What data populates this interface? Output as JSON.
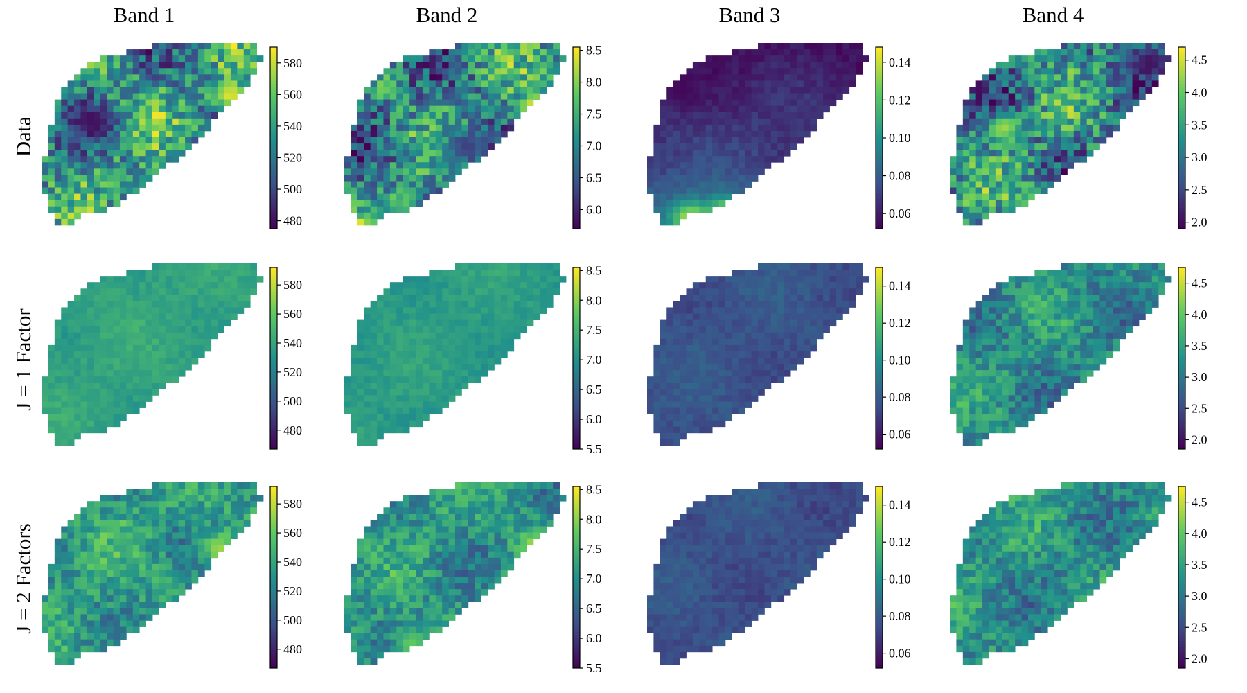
{
  "columns": [
    "Band 1",
    "Band 2",
    "Band 3",
    "Band 4"
  ],
  "rows": [
    "Data",
    "J = 1 Factor",
    "J = 2 Factors"
  ],
  "colormap": [
    "#440154",
    "#3b528b",
    "#21918c",
    "#5ec962",
    "#fde725"
  ],
  "chart_data": {
    "type": "heatmap",
    "title": "",
    "xlabel": "",
    "ylabel": "",
    "description_layout": "3 rows x 4 columns grid of spatial raster maps with viridis colour bars",
    "panels": [
      {
        "row": "Data",
        "band": "Band 1",
        "range": [
          475,
          590
        ],
        "ticks": [
          "480",
          "500",
          "520",
          "540",
          "560",
          "580"
        ],
        "tick_values": [
          480,
          500,
          520,
          540,
          560,
          580
        ],
        "variation": "high",
        "mean": 0.5,
        "hotspots": [
          [
            0.85,
            0.28,
            0.95
          ],
          [
            0.55,
            0.72,
            0.8
          ]
        ],
        "lowspots": [
          [
            0.22,
            0.42,
            0.05
          ]
        ]
      },
      {
        "row": "Data",
        "band": "Band 2",
        "range": [
          5.7,
          8.55
        ],
        "ticks": [
          "6.0",
          "6.5",
          "7.0",
          "7.5",
          "8.0",
          "8.5"
        ],
        "tick_values": [
          6.0,
          6.5,
          7.0,
          7.5,
          8.0,
          8.5
        ],
        "variation": "high",
        "mean": 0.46,
        "hotspots": [
          [
            0.87,
            0.33,
            0.95
          ],
          [
            0.3,
            0.85,
            0.95
          ]
        ],
        "lowspots": [
          [
            0.4,
            0.88,
            0.05
          ],
          [
            0.55,
            0.55,
            0.2
          ]
        ]
      },
      {
        "row": "Data",
        "band": "Band 3",
        "range": [
          0.052,
          0.148
        ],
        "ticks": [
          "0.06",
          "0.08",
          "0.10",
          "0.12",
          "0.14"
        ],
        "tick_values": [
          0.06,
          0.08,
          0.1,
          0.12,
          0.14
        ],
        "variation": "gradient",
        "mean": 0.2,
        "hotspots": [
          [
            0.2,
            0.93,
            0.95
          ],
          [
            0.35,
            0.9,
            0.85
          ]
        ],
        "lowspots": [
          [
            0.15,
            0.25,
            0.02
          ]
        ]
      },
      {
        "row": "Data",
        "band": "Band 4",
        "range": [
          1.9,
          4.7
        ],
        "ticks": [
          "2.0",
          "2.5",
          "3.0",
          "3.5",
          "4.0",
          "4.5"
        ],
        "tick_values": [
          2.0,
          2.5,
          3.0,
          3.5,
          4.0,
          4.5
        ],
        "variation": "high",
        "mean": 0.45,
        "hotspots": [
          [
            0.25,
            0.45,
            0.85
          ],
          [
            0.4,
            0.85,
            0.85
          ]
        ],
        "lowspots": [
          [
            0.9,
            0.1,
            0.05
          ]
        ]
      },
      {
        "row": "J = 1 Factor",
        "band": "Band 1",
        "range": [
          467,
          592
        ],
        "ticks": [
          "480",
          "500",
          "520",
          "540",
          "560",
          "580"
        ],
        "tick_values": [
          480,
          500,
          520,
          540,
          560,
          580
        ],
        "variation": "low",
        "mean": 0.58,
        "hotspots": [],
        "lowspots": []
      },
      {
        "row": "J = 1 Factor",
        "band": "Band 2",
        "range": [
          5.5,
          8.55
        ],
        "ticks": [
          "5.5",
          "6.0",
          "6.5",
          "7.0",
          "7.5",
          "8.0",
          "8.5"
        ],
        "tick_values": [
          5.5,
          6.0,
          6.5,
          7.0,
          7.5,
          8.0,
          8.5
        ],
        "variation": "low",
        "mean": 0.55,
        "hotspots": [],
        "lowspots": []
      },
      {
        "row": "J = 1 Factor",
        "band": "Band 3",
        "range": [
          0.052,
          0.15
        ],
        "ticks": [
          "0.06",
          "0.08",
          "0.10",
          "0.12",
          "0.14"
        ],
        "tick_values": [
          0.06,
          0.08,
          0.1,
          0.12,
          0.14
        ],
        "variation": "low",
        "mean": 0.26,
        "hotspots": [],
        "lowspots": []
      },
      {
        "row": "J = 1 Factor",
        "band": "Band 4",
        "range": [
          1.85,
          4.75
        ],
        "ticks": [
          "2.0",
          "2.5",
          "3.0",
          "3.5",
          "4.0",
          "4.5"
        ],
        "tick_values": [
          2.0,
          2.5,
          3.0,
          3.5,
          4.0,
          4.5
        ],
        "variation": "medium",
        "mean": 0.48,
        "hotspots": [],
        "lowspots": []
      },
      {
        "row": "J = 2 Factors",
        "band": "Band 1",
        "range": [
          467,
          592
        ],
        "ticks": [
          "480",
          "500",
          "520",
          "540",
          "560",
          "580"
        ],
        "tick_values": [
          480,
          500,
          520,
          540,
          560,
          580
        ],
        "variation": "medium",
        "mean": 0.55,
        "hotspots": [
          [
            0.8,
            0.35,
            0.85
          ]
        ],
        "lowspots": []
      },
      {
        "row": "J = 2 Factors",
        "band": "Band 2",
        "range": [
          5.5,
          8.55
        ],
        "ticks": [
          "5.5",
          "6.0",
          "6.5",
          "7.0",
          "7.5",
          "8.0",
          "8.5"
        ],
        "tick_values": [
          5.5,
          6.0,
          6.5,
          7.0,
          7.5,
          8.0,
          8.5
        ],
        "variation": "medium",
        "mean": 0.52,
        "hotspots": [
          [
            0.87,
            0.33,
            0.88
          ],
          [
            0.3,
            0.85,
            0.75
          ]
        ],
        "lowspots": []
      },
      {
        "row": "J = 2 Factors",
        "band": "Band 3",
        "range": [
          0.052,
          0.15
        ],
        "ticks": [
          "0.06",
          "0.08",
          "0.10",
          "0.12",
          "0.14"
        ],
        "tick_values": [
          0.06,
          0.08,
          0.1,
          0.12,
          0.14
        ],
        "variation": "low",
        "mean": 0.25,
        "hotspots": [],
        "lowspots": []
      },
      {
        "row": "J = 2 Factors",
        "band": "Band 4",
        "range": [
          1.85,
          4.75
        ],
        "ticks": [
          "2.0",
          "2.5",
          "3.0",
          "3.5",
          "4.0",
          "4.5"
        ],
        "tick_values": [
          2.0,
          2.5,
          3.0,
          3.5,
          4.0,
          4.5
        ],
        "variation": "medium",
        "mean": 0.5,
        "hotspots": [],
        "lowspots": []
      }
    ]
  }
}
